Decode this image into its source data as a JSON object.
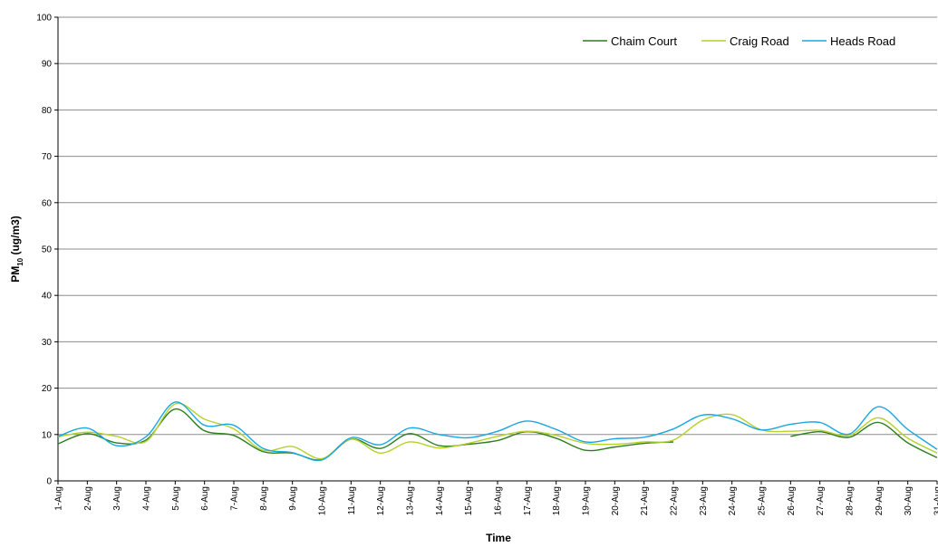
{
  "chart_data": {
    "type": "line",
    "xlabel": "Time",
    "ylabel": {
      "main": "PM",
      "sub": "10",
      "rest": " (ug/m3)"
    },
    "ylim": [
      0,
      100
    ],
    "yticks": [
      "0",
      "10",
      "20",
      "30",
      "40",
      "50",
      "60",
      "70",
      "80",
      "90",
      "100"
    ],
    "grid": true,
    "legend_position": "top-right",
    "categories": [
      "1-Aug",
      "2-Aug",
      "3-Aug",
      "4-Aug",
      "5-Aug",
      "6-Aug",
      "7-Aug",
      "8-Aug",
      "9-Aug",
      "10-Aug",
      "11-Aug",
      "12-Aug",
      "13-Aug",
      "14-Aug",
      "15-Aug",
      "16-Aug",
      "17-Aug",
      "18-Aug",
      "19-Aug",
      "20-Aug",
      "21-Aug",
      "22-Aug",
      "23-Aug",
      "24-Aug",
      "25-Aug",
      "26-Aug",
      "27-Aug",
      "28-Aug",
      "29-Aug",
      "30-Aug",
      "31-Aug"
    ],
    "series": [
      {
        "name": "Chaim Court",
        "color": "#2e7d1e",
        "values": [
          8.0,
          10.2,
          8.2,
          8.8,
          15.5,
          10.8,
          9.8,
          6.3,
          6.0,
          4.6,
          9.0,
          7.0,
          10.2,
          7.6,
          7.9,
          8.7,
          10.6,
          9.2,
          6.6,
          7.3,
          8.1,
          8.4,
          null,
          null,
          null,
          9.6,
          10.6,
          9.4,
          12.6,
          8.2,
          5.0
        ]
      },
      {
        "name": "Craig Road",
        "color": "#b6d12a",
        "values": [
          9.5,
          10.5,
          9.6,
          8.5,
          16.6,
          13.3,
          11.2,
          6.6,
          7.4,
          4.8,
          9.0,
          6.0,
          8.4,
          7.1,
          8.1,
          9.6,
          10.7,
          9.8,
          8.1,
          7.9,
          8.4,
          8.8,
          13.1,
          14.3,
          11.0,
          10.7,
          10.9,
          9.8,
          13.6,
          9.2,
          6.0
        ]
      },
      {
        "name": "Heads Road",
        "color": "#1aa7e0",
        "values": [
          9.6,
          11.4,
          7.6,
          9.5,
          17.0,
          12.0,
          12.0,
          7.0,
          6.1,
          4.5,
          9.3,
          7.8,
          11.4,
          10.0,
          9.3,
          10.7,
          12.9,
          11.1,
          8.4,
          9.1,
          9.4,
          11.2,
          14.2,
          13.4,
          11.0,
          12.2,
          12.6,
          10.1,
          16.0,
          11.1,
          6.8
        ]
      }
    ]
  }
}
